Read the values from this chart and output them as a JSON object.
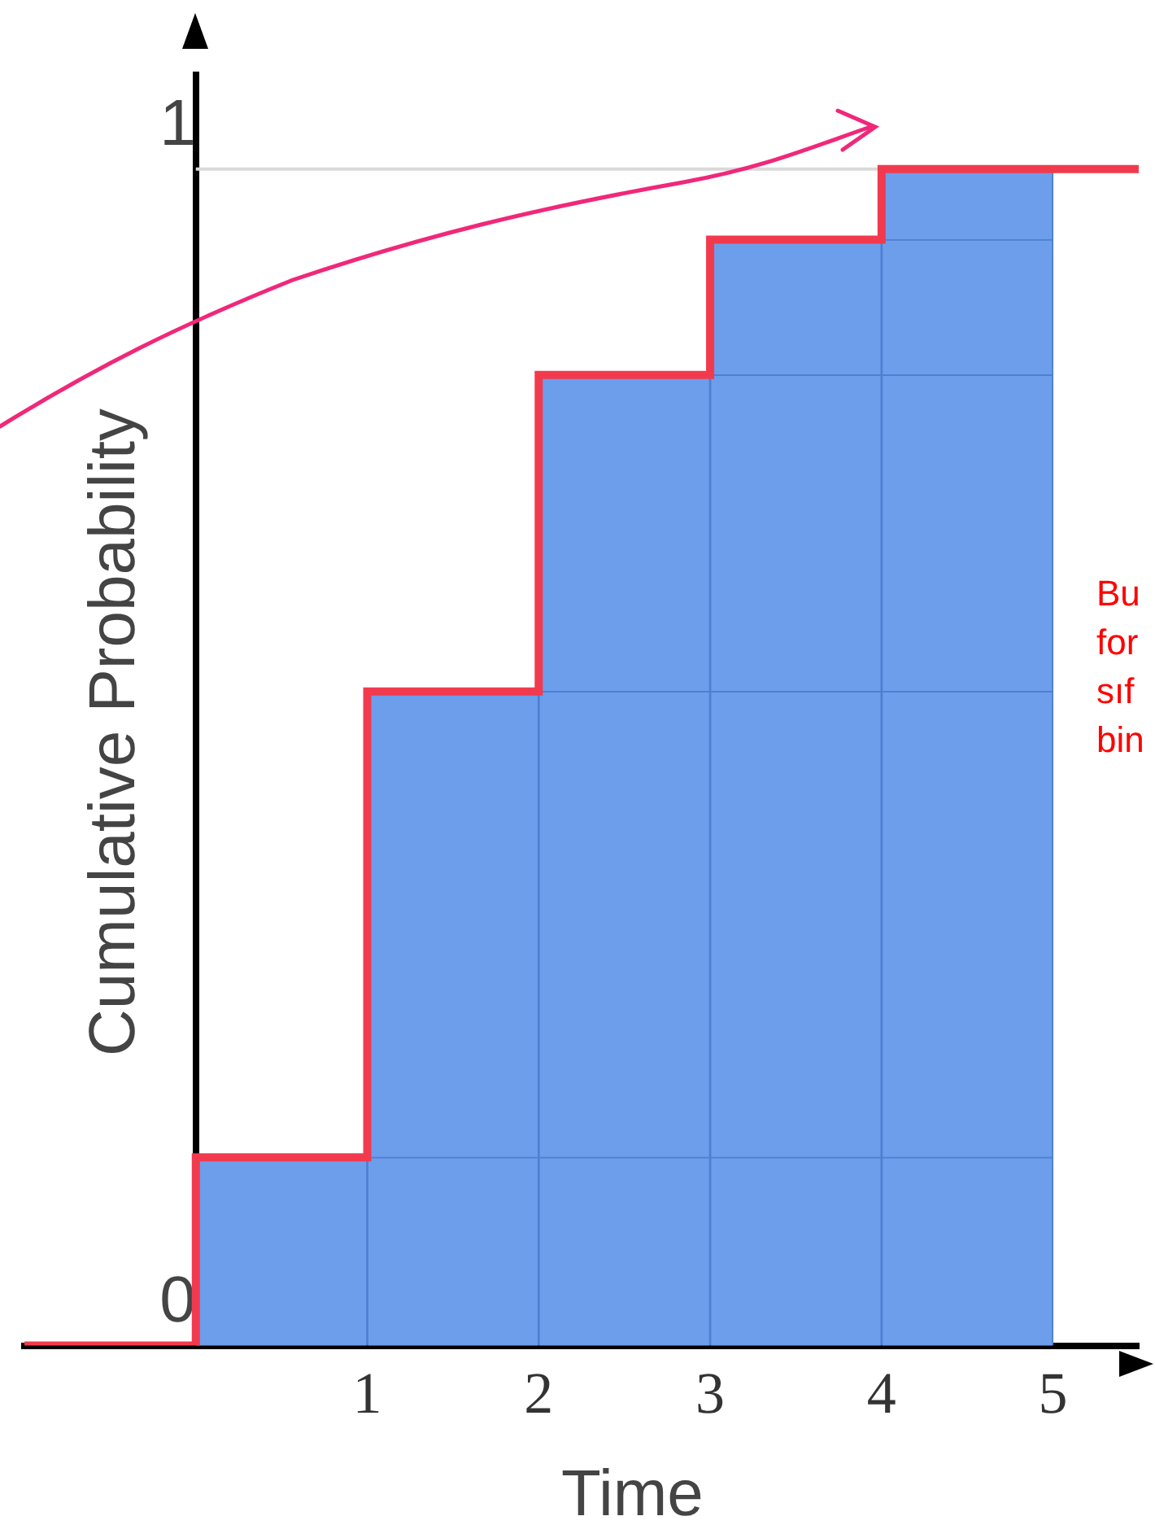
{
  "chart_data": {
    "type": "bar",
    "stacked": true,
    "xlabel": "Time",
    "ylabel": "Cumulative Probability",
    "x": [
      0.5,
      1.5,
      2.5,
      3.5,
      4.5
    ],
    "xlim": [
      -1,
      5.5
    ],
    "xticks": [
      1,
      2,
      3,
      4,
      5
    ],
    "ylim": [
      0,
      1.08
    ],
    "yticks": [
      0,
      1
    ],
    "grid": false,
    "legend": false,
    "series": [
      {
        "color": "#6d9eeb",
        "values": [
          0.16,
          0.16,
          0.16,
          0.16,
          0.16
        ]
      },
      {
        "color": "#6d9eeb",
        "values": [
          null,
          0.396,
          0.396,
          0.396,
          0.396
        ]
      },
      {
        "color": "#6d9eeb",
        "values": [
          null,
          null,
          0.269,
          0.269,
          0.269
        ]
      },
      {
        "color": "#6d9eeb",
        "values": [
          null,
          null,
          null,
          0.115,
          0.115
        ]
      },
      {
        "color": "#6d9eeb",
        "values": [
          null,
          null,
          null,
          null,
          0.06
        ]
      },
      {
        "type": "step",
        "color": "#f23a4e",
        "x": [
          -1,
          0,
          1,
          2,
          3,
          4,
          5.5
        ],
        "values": [
          0,
          0.16,
          0.556,
          0.825,
          0.94,
          1,
          1
        ]
      }
    ],
    "ref_lines": [
      {
        "axis": "y",
        "value": 1,
        "color": "#d9d9d9"
      }
    ],
    "annotations": [
      "Bu",
      "for",
      "sıf",
      "bin"
    ]
  }
}
